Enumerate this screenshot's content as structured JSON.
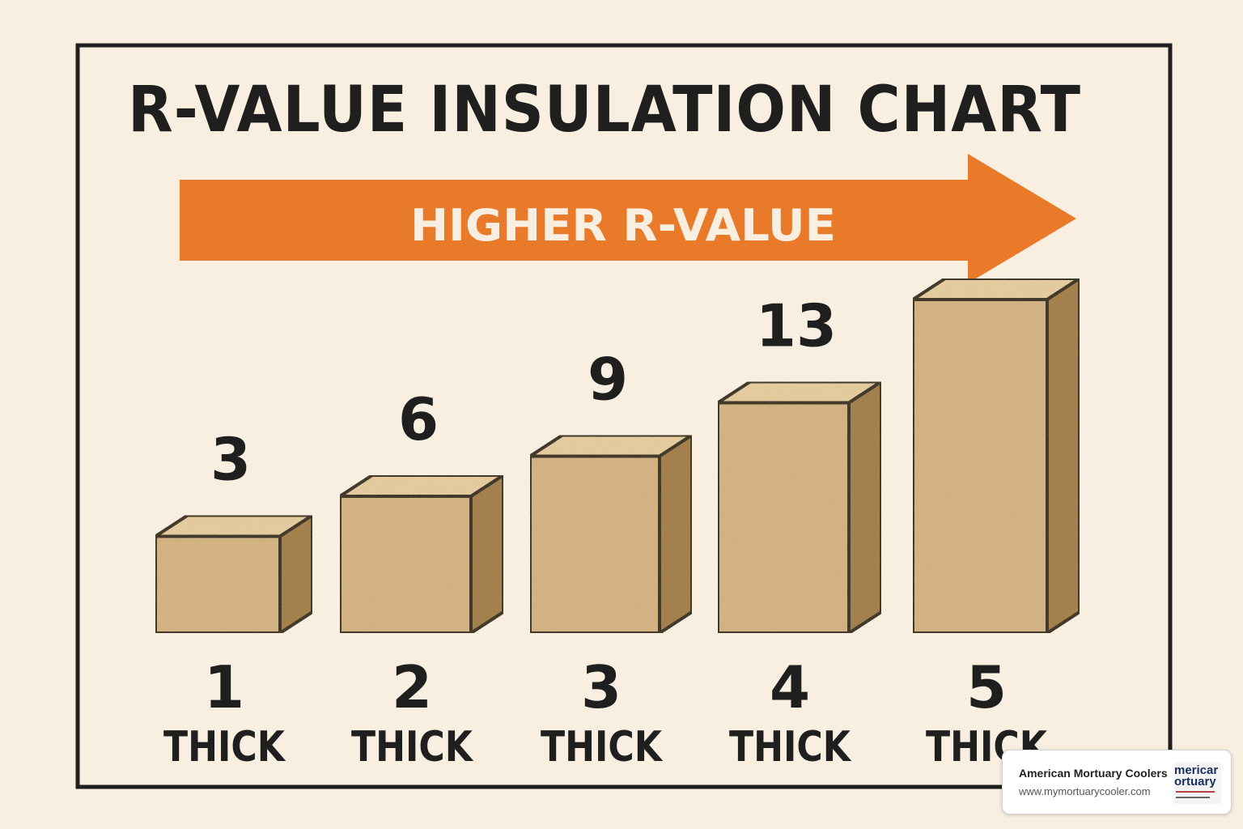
{
  "chart_data": {
    "type": "bar",
    "title": "R-VALUE INSULATION CHART",
    "banner": "HIGHER R-VALUE",
    "categories": [
      {
        "number": "1",
        "unit": "THICK"
      },
      {
        "number": "2",
        "unit": "THICK"
      },
      {
        "number": "3",
        "unit": "THICK"
      },
      {
        "number": "4",
        "unit": "THICK"
      },
      {
        "number": "5",
        "unit": "THICK"
      }
    ],
    "values": [
      3,
      6,
      9,
      13,
      null
    ],
    "value_labels": [
      "3",
      "6",
      "9",
      "13",
      ""
    ],
    "xlabel": "",
    "ylabel": "",
    "grid": false,
    "colors": {
      "background": "#f8efe1",
      "arrow": "#e97a2a",
      "box_front": "#d9b888",
      "box_top": "#ecd3a6",
      "box_side": "#a4804b",
      "outline": "#1f1f1f"
    }
  },
  "watermark": {
    "name": "American Mortuary Coolers",
    "url": "www.mymortuarycooler.com",
    "logo_text": [
      "mericar",
      "ortuary"
    ]
  }
}
